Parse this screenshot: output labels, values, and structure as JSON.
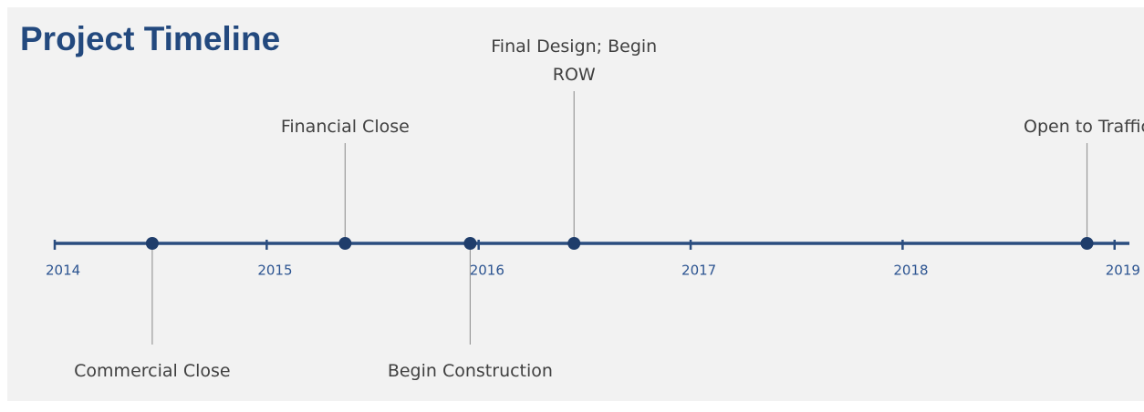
{
  "chart_data": {
    "type": "timeline",
    "title": "Project Timeline",
    "categories": [
      "Commercial Close",
      "Financial Close",
      "Begin Construction",
      "Final Design; Begin ROW",
      "Open to Traffic"
    ],
    "x": [
      2014.46,
      2015.37,
      2015.96,
      2016.45,
      2018.87
    ],
    "xlim": [
      2014,
      2019.07
    ],
    "xticks": [
      2014,
      2015,
      2016,
      2017,
      2018,
      2019
    ],
    "color": "#1f3d6b"
  }
}
